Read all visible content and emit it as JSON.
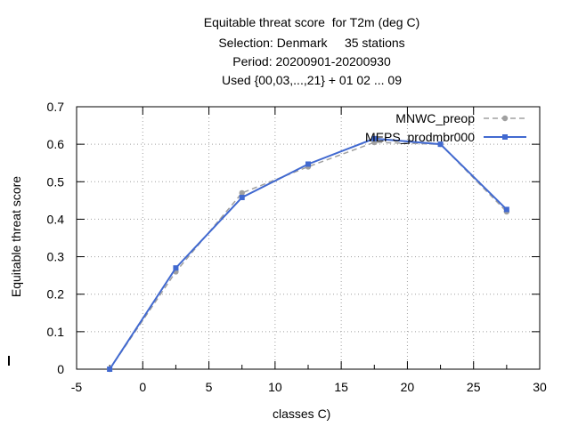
{
  "chart_data": {
    "type": "line",
    "title_lines": [
      "Equitable threat score  for T2m (deg C)",
      "Selection: Denmark     35 stations",
      "Period: 20200901-20200930",
      "Used {00,03,...,21} + 01 02 ... 09"
    ],
    "xlabel": "classes C)",
    "ylabel": "Equitable threat score",
    "xlim": [
      -5,
      30
    ],
    "ylim": [
      0,
      0.7
    ],
    "xticks": [
      "-5",
      "0",
      "5",
      "10",
      "15",
      "20",
      "25",
      "30"
    ],
    "yticks": [
      "0",
      "0.1",
      "0.2",
      "0.3",
      "0.4",
      "0.5",
      "0.6",
      "0.7"
    ],
    "grid": true,
    "legend_position": "top-right",
    "series": [
      {
        "name": "MNWC_preop",
        "color": "#a0a0a0",
        "dash": true,
        "x": [
          -2.5,
          2.5,
          7.5,
          12.5,
          17.5,
          22.5,
          27.5
        ],
        "y": [
          0.0,
          0.26,
          0.47,
          0.54,
          0.605,
          0.6,
          0.42
        ]
      },
      {
        "name": "MEPS_prodmbr000",
        "color": "#4169d0",
        "dash": false,
        "x": [
          -2.5,
          2.5,
          7.5,
          12.5,
          17.5,
          22.5,
          27.5
        ],
        "y": [
          0.0,
          0.27,
          0.458,
          0.547,
          0.615,
          0.6,
          0.426
        ]
      }
    ]
  }
}
